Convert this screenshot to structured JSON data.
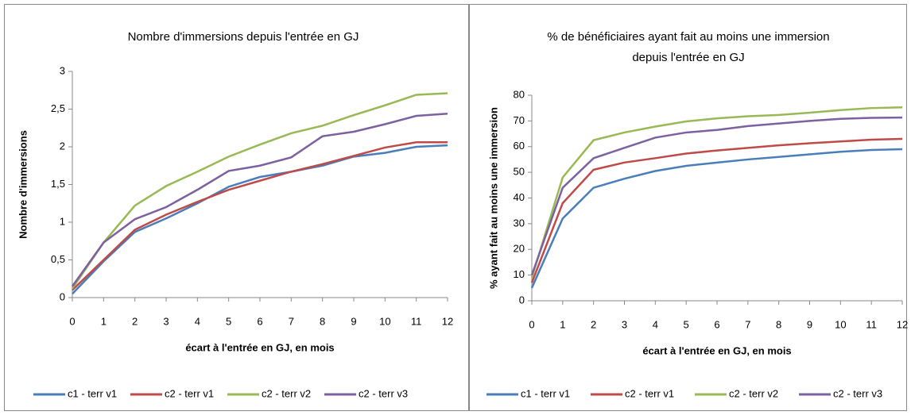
{
  "chart_data": [
    {
      "type": "line",
      "title": [
        "Nombre d'immersions depuis l'entrée en GJ"
      ],
      "x_label": "écart à l'entrée en GJ, en mois",
      "y_label": "Nombre d'immersions",
      "x": [
        0,
        1,
        2,
        3,
        4,
        5,
        6,
        7,
        8,
        9,
        10,
        11,
        12
      ],
      "xlim": [
        0,
        12
      ],
      "xticks": [
        0,
        1,
        2,
        3,
        4,
        5,
        6,
        7,
        8,
        9,
        10,
        11,
        12
      ],
      "ylim": [
        0,
        3
      ],
      "yticks": [
        0,
        {
          "value": 0.5,
          "label": "0,5"
        },
        1,
        {
          "value": 1.5,
          "label": "1,5"
        },
        2,
        {
          "value": 2.5,
          "label": "2,5"
        },
        3
      ],
      "grid": false,
      "legend": "bottom",
      "series": [
        {
          "name": "c1 - terr v1",
          "color": "#4a7ebb",
          "values": [
            0.05,
            0.48,
            0.87,
            1.05,
            1.25,
            1.47,
            1.6,
            1.67,
            1.75,
            1.87,
            1.92,
            2.0,
            2.02
          ]
        },
        {
          "name": "c2 - terr v1",
          "color": "#be4b48",
          "values": [
            0.1,
            0.5,
            0.9,
            1.1,
            1.27,
            1.43,
            1.55,
            1.67,
            1.77,
            1.88,
            1.99,
            2.06,
            2.06
          ]
        },
        {
          "name": "c2 - terr v2",
          "color": "#98b954",
          "values": [
            0.12,
            0.73,
            1.22,
            1.48,
            1.67,
            1.87,
            2.03,
            2.18,
            2.28,
            2.42,
            2.55,
            2.69,
            2.71
          ]
        },
        {
          "name": "c2 - terr v3",
          "color": "#7d60a0",
          "values": [
            0.15,
            0.73,
            1.04,
            1.2,
            1.43,
            1.68,
            1.75,
            1.86,
            2.14,
            2.2,
            2.3,
            2.41,
            2.44
          ]
        }
      ]
    },
    {
      "type": "line",
      "title": [
        "% de bénéficiaires ayant fait au moins une immersion",
        "depuis l'entrée en GJ"
      ],
      "x_label": "écart à l'entrée en GJ, en mois",
      "y_label": "% ayant fait au moins une immersion",
      "x": [
        0,
        1,
        2,
        3,
        4,
        5,
        6,
        7,
        8,
        9,
        10,
        11,
        12
      ],
      "xlim": [
        0,
        12
      ],
      "xticks": [
        0,
        1,
        2,
        3,
        4,
        5,
        6,
        7,
        8,
        9,
        10,
        11,
        12
      ],
      "ylim": [
        0,
        80
      ],
      "yticks": [
        0,
        10,
        20,
        30,
        40,
        50,
        60,
        70,
        80
      ],
      "grid": false,
      "legend": "bottom",
      "series": [
        {
          "name": "c1 - terr v1",
          "color": "#4a7ebb",
          "values": [
            5,
            32,
            44,
            47.5,
            50.5,
            52.5,
            53.8,
            55,
            56,
            57,
            58,
            58.7,
            59
          ]
        },
        {
          "name": "c2 - terr v1",
          "color": "#be4b48",
          "values": [
            7,
            38,
            51,
            53.8,
            55.5,
            57.3,
            58.5,
            59.5,
            60.5,
            61.3,
            62,
            62.7,
            63
          ]
        },
        {
          "name": "c2 - terr v2",
          "color": "#98b954",
          "values": [
            9,
            48,
            62.5,
            65.5,
            67.8,
            69.8,
            71,
            71.8,
            72.3,
            73.2,
            74.2,
            75,
            75.3
          ]
        },
        {
          "name": "c2 - terr v3",
          "color": "#7d60a0",
          "values": [
            10,
            44,
            55.5,
            59.5,
            63.5,
            65.5,
            66.5,
            68,
            69,
            70,
            70.8,
            71.2,
            71.3
          ]
        }
      ]
    }
  ]
}
